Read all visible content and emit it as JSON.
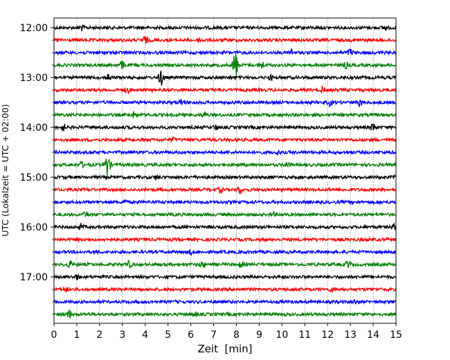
{
  "chart_data": {
    "type": "line",
    "title": "",
    "xlabel": "Zeit  [min]",
    "ylabel": "UTC (Lokalzeit = UTC + 02:00)",
    "xlim": [
      0,
      15
    ],
    "x_ticks": [
      "0",
      "1",
      "2",
      "3",
      "4",
      "5",
      "6",
      "7",
      "8",
      "9",
      "10",
      "11",
      "12",
      "13",
      "14",
      "15"
    ],
    "y_ticks": [
      "12:00",
      "13:00",
      "14:00",
      "15:00",
      "16:00",
      "17:00"
    ],
    "grid": "vertical dotted at each minute",
    "trace_colors": [
      "#000000",
      "#ff0000",
      "#0000ff",
      "#008000"
    ],
    "trace_interval_minutes": 15,
    "series": [
      {
        "start": "12:00",
        "color": "#000000",
        "events": [
          {
            "x": 1.2,
            "amp": 0.35
          },
          {
            "x": 14.5,
            "amp": 0.3
          }
        ]
      },
      {
        "start": "12:15",
        "color": "#ff0000",
        "events": [
          {
            "x": 4.0,
            "amp": 0.45
          },
          {
            "x": 6.4,
            "amp": 0.25
          }
        ]
      },
      {
        "start": "12:30",
        "color": "#0000ff",
        "events": [
          {
            "x": 10.4,
            "amp": 0.4
          },
          {
            "x": 13.0,
            "amp": 0.45
          }
        ]
      },
      {
        "start": "12:45",
        "color": "#008000",
        "events": [
          {
            "x": 3.0,
            "amp": 0.5
          },
          {
            "x": 7.95,
            "amp": 2.0
          },
          {
            "x": 9.1,
            "amp": 0.5
          },
          {
            "x": 12.8,
            "amp": 0.35
          }
        ]
      },
      {
        "start": "13:00",
        "color": "#000000",
        "events": [
          {
            "x": 2.4,
            "amp": 0.45
          },
          {
            "x": 4.7,
            "amp": 1.0
          },
          {
            "x": 9.5,
            "amp": 0.25
          }
        ]
      },
      {
        "start": "13:15",
        "color": "#ff0000",
        "events": [
          {
            "x": 3.2,
            "amp": 0.35
          },
          {
            "x": 11.8,
            "amp": 0.3
          }
        ]
      },
      {
        "start": "13:30",
        "color": "#0000ff",
        "events": [
          {
            "x": 5.6,
            "amp": 0.4
          },
          {
            "x": 12.1,
            "amp": 0.35
          },
          {
            "x": 13.4,
            "amp": 0.45
          }
        ]
      },
      {
        "start": "13:45",
        "color": "#008000",
        "events": [
          {
            "x": 3.5,
            "amp": 0.3
          },
          {
            "x": 6.6,
            "amp": 0.35
          }
        ]
      },
      {
        "start": "14:00",
        "color": "#000000",
        "events": [
          {
            "x": 0.4,
            "amp": 0.35
          },
          {
            "x": 7.1,
            "amp": 0.3
          },
          {
            "x": 14.0,
            "amp": 0.5
          }
        ]
      },
      {
        "start": "14:15",
        "color": "#ff0000",
        "events": [
          {
            "x": 5.2,
            "amp": 0.2
          }
        ]
      },
      {
        "start": "14:30",
        "color": "#0000ff",
        "events": [
          {
            "x": 9.8,
            "amp": 0.2
          }
        ]
      },
      {
        "start": "14:45",
        "color": "#008000",
        "events": [
          {
            "x": 1.2,
            "amp": 0.3
          },
          {
            "x": 2.35,
            "amp": 1.6
          },
          {
            "x": 10.2,
            "amp": 0.3
          }
        ]
      },
      {
        "start": "15:00",
        "color": "#000000",
        "events": [
          {
            "x": 4.5,
            "amp": 0.25
          },
          {
            "x": 15.0,
            "amp": 0.3
          }
        ]
      },
      {
        "start": "15:15",
        "color": "#ff0000",
        "events": [
          {
            "x": 7.3,
            "amp": 0.3
          },
          {
            "x": 8.15,
            "amp": 0.45
          }
        ]
      },
      {
        "start": "15:30",
        "color": "#0000ff",
        "events": [
          {
            "x": 3.1,
            "amp": 0.25
          }
        ]
      },
      {
        "start": "15:45",
        "color": "#008000",
        "events": [
          {
            "x": 1.4,
            "amp": 0.3
          },
          {
            "x": 9.6,
            "amp": 0.25
          }
        ]
      },
      {
        "start": "16:00",
        "color": "#000000",
        "events": [
          {
            "x": 1.2,
            "amp": 0.3
          },
          {
            "x": 14.9,
            "amp": 0.3
          }
        ]
      },
      {
        "start": "16:15",
        "color": "#ff0000",
        "events": [
          {
            "x": 2.3,
            "amp": 0.2
          }
        ]
      },
      {
        "start": "16:30",
        "color": "#0000ff",
        "events": [
          {
            "x": 6.0,
            "amp": 0.25
          }
        ]
      },
      {
        "start": "16:45",
        "color": "#008000",
        "events": [
          {
            "x": 0.7,
            "amp": 0.4
          },
          {
            "x": 3.3,
            "amp": 0.4
          },
          {
            "x": 6.5,
            "amp": 0.4
          },
          {
            "x": 8.2,
            "amp": 0.3
          },
          {
            "x": 12.9,
            "amp": 0.4
          }
        ]
      },
      {
        "start": "17:00",
        "color": "#000000",
        "events": [
          {
            "x": 1.0,
            "amp": 0.25
          }
        ]
      },
      {
        "start": "17:15",
        "color": "#ff0000",
        "events": [
          {
            "x": 0.5,
            "amp": 0.3
          },
          {
            "x": 12.2,
            "amp": 0.25
          }
        ]
      },
      {
        "start": "17:30",
        "color": "#0000ff",
        "events": [
          {
            "x": 13.2,
            "amp": 0.2
          }
        ]
      },
      {
        "start": "17:45",
        "color": "#008000",
        "events": [
          {
            "x": 0.65,
            "amp": 0.45
          },
          {
            "x": 6.2,
            "amp": 0.2
          }
        ]
      }
    ]
  }
}
